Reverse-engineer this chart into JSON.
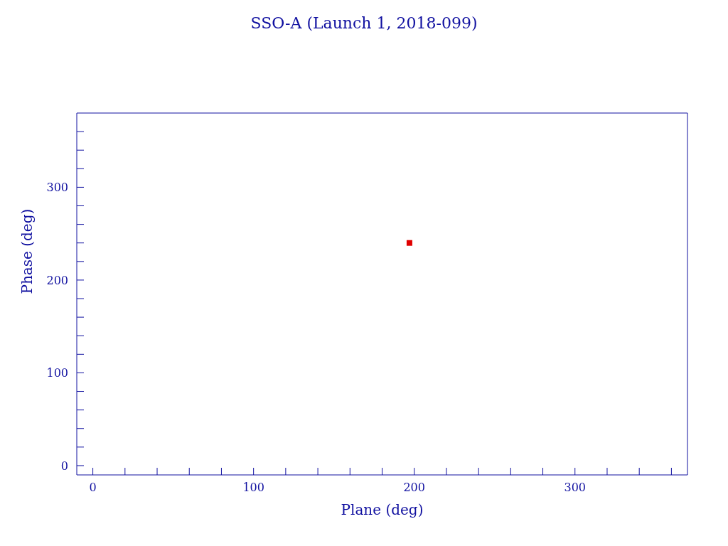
{
  "chart_data": {
    "type": "scatter",
    "title": "SSO-A (Launch 1, 2018-099)",
    "xlabel": "Plane (deg)",
    "ylabel": "Phase (deg)",
    "x": [
      197
    ],
    "values": [
      240
    ],
    "color": "#e00000",
    "marker": "square",
    "xlim": [
      -10,
      370
    ],
    "ylim": [
      -10,
      380
    ],
    "xticks": [
      0,
      {
        "value": 20,
        "label": null
      },
      {
        "value": 40,
        "label": null
      },
      {
        "value": 60,
        "label": null
      },
      {
        "value": 80,
        "label": null
      },
      100,
      {
        "value": 120,
        "label": null
      },
      {
        "value": 140,
        "label": null
      },
      {
        "value": 160,
        "label": null
      },
      {
        "value": 180,
        "label": null
      },
      200,
      {
        "value": 220,
        "label": null
      },
      {
        "value": 240,
        "label": null
      },
      {
        "value": 260,
        "label": null
      },
      {
        "value": 280,
        "label": null
      },
      300,
      {
        "value": 320,
        "label": null
      },
      {
        "value": 340,
        "label": null
      },
      {
        "value": 360,
        "label": null
      }
    ],
    "yticks": [
      0,
      {
        "value": 20,
        "label": null
      },
      {
        "value": 40,
        "label": null
      },
      {
        "value": 60,
        "label": null
      },
      {
        "value": 80,
        "label": null
      },
      100,
      {
        "value": 120,
        "label": null
      },
      {
        "value": 140,
        "label": null
      },
      {
        "value": 160,
        "label": null
      },
      {
        "value": 180,
        "label": null
      },
      200,
      {
        "value": 220,
        "label": null
      },
      {
        "value": 240,
        "label": null
      },
      {
        "value": 260,
        "label": null
      },
      {
        "value": 280,
        "label": null
      },
      300,
      {
        "value": 320,
        "label": null
      },
      {
        "value": 340,
        "label": null
      },
      {
        "value": 360,
        "label": null
      }
    ],
    "grid": false,
    "legend": false
  }
}
